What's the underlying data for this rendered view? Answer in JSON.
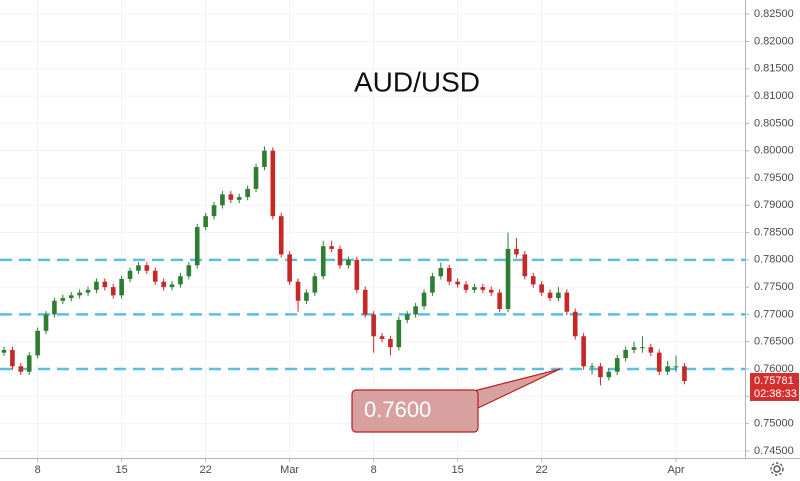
{
  "chart_data": {
    "type": "candlestick",
    "title": "AUD/USD",
    "open": [
      0.763,
      0.7635,
      0.7605,
      0.7595,
      0.7625,
      0.767,
      0.77,
      0.7725,
      0.773,
      0.7735,
      0.774,
      0.7745,
      0.776,
      0.775,
      0.7735,
      0.7765,
      0.778,
      0.779,
      0.778,
      0.776,
      0.775,
      0.7755,
      0.777,
      0.779,
      0.786,
      0.788,
      0.79,
      0.792,
      0.791,
      0.7915,
      0.793,
      0.797,
      0.8,
      0.788,
      0.781,
      0.776,
      0.7725,
      0.774,
      0.777,
      0.7825,
      0.782,
      0.779,
      0.78,
      0.7745,
      0.77,
      0.766,
      0.7655,
      0.764,
      0.769,
      0.77,
      0.7715,
      0.774,
      0.777,
      0.7785,
      0.776,
      0.7755,
      0.7745,
      0.775,
      0.7745,
      0.774,
      0.771,
      0.782,
      0.781,
      0.777,
      0.7755,
      0.774,
      0.773,
      0.774,
      0.7705,
      0.766,
      0.7605,
      0.7605,
      0.7585,
      0.7595,
      0.762,
      0.7635,
      0.764,
      0.764,
      0.763,
      0.7595,
      0.7605,
      0.7605
    ],
    "high": [
      0.7641,
      0.7641,
      0.7611,
      0.7631,
      0.7676,
      0.7706,
      0.7731,
      0.7736,
      0.7741,
      0.7746,
      0.7751,
      0.7766,
      0.7766,
      0.7756,
      0.7771,
      0.7786,
      0.7796,
      0.7796,
      0.7786,
      0.7766,
      0.7761,
      0.7776,
      0.7796,
      0.7866,
      0.7886,
      0.7906,
      0.7926,
      0.7926,
      0.7921,
      0.7936,
      0.7976,
      0.8008,
      0.8006,
      0.7886,
      0.7816,
      0.7766,
      0.7746,
      0.7776,
      0.7835,
      0.7835,
      0.7826,
      0.7806,
      0.7806,
      0.7751,
      0.7706,
      0.7666,
      0.7661,
      0.7696,
      0.7706,
      0.7721,
      0.7746,
      0.7776,
      0.7795,
      0.7791,
      0.7766,
      0.7761,
      0.7756,
      0.7756,
      0.7751,
      0.7746,
      0.785,
      0.784,
      0.7816,
      0.7776,
      0.7761,
      0.7746,
      0.775,
      0.7746,
      0.7711,
      0.7666,
      0.7611,
      0.7611,
      0.7601,
      0.7626,
      0.7641,
      0.765,
      0.766,
      0.7646,
      0.7636,
      0.7615,
      0.7625,
      0.7611
    ],
    "low": [
      0.7624,
      0.7599,
      0.7589,
      0.7589,
      0.7619,
      0.7664,
      0.7694,
      0.7719,
      0.7724,
      0.7729,
      0.7734,
      0.7739,
      0.7744,
      0.7729,
      0.7729,
      0.7759,
      0.7774,
      0.7774,
      0.7754,
      0.7744,
      0.7744,
      0.7749,
      0.7764,
      0.7784,
      0.7854,
      0.7874,
      0.7894,
      0.7904,
      0.7904,
      0.7909,
      0.7924,
      0.7964,
      0.7874,
      0.7804,
      0.7754,
      0.7705,
      0.7719,
      0.7734,
      0.7764,
      0.7814,
      0.7784,
      0.7784,
      0.7739,
      0.7694,
      0.763,
      0.7649,
      0.7625,
      0.7634,
      0.7684,
      0.7694,
      0.7709,
      0.7734,
      0.7764,
      0.7754,
      0.7749,
      0.7739,
      0.7739,
      0.7739,
      0.7734,
      0.7704,
      0.7704,
      0.7804,
      0.7764,
      0.7749,
      0.7734,
      0.7724,
      0.7724,
      0.7699,
      0.7654,
      0.7599,
      0.759,
      0.757,
      0.7579,
      0.7589,
      0.7614,
      0.7629,
      0.763,
      0.7624,
      0.7589,
      0.7589,
      0.7595,
      0.7572
    ],
    "close": [
      0.7635,
      0.7605,
      0.7595,
      0.7625,
      0.767,
      0.77,
      0.7725,
      0.773,
      0.7735,
      0.774,
      0.7745,
      0.776,
      0.775,
      0.7735,
      0.7765,
      0.778,
      0.779,
      0.778,
      0.776,
      0.775,
      0.7755,
      0.777,
      0.779,
      0.786,
      0.788,
      0.79,
      0.792,
      0.791,
      0.7915,
      0.793,
      0.797,
      0.8,
      0.788,
      0.781,
      0.776,
      0.7725,
      0.774,
      0.777,
      0.7825,
      0.782,
      0.779,
      0.78,
      0.7745,
      0.77,
      0.766,
      0.7655,
      0.764,
      0.769,
      0.77,
      0.7715,
      0.774,
      0.777,
      0.7785,
      0.776,
      0.7755,
      0.7745,
      0.775,
      0.7745,
      0.774,
      0.771,
      0.782,
      0.781,
      0.777,
      0.7755,
      0.774,
      0.773,
      0.774,
      0.7705,
      0.766,
      0.7605,
      0.7605,
      0.7585,
      0.7595,
      0.762,
      0.7635,
      0.764,
      0.764,
      0.763,
      0.7595,
      0.7605,
      0.7605,
      0.7578
    ],
    "up_color": "#2e7d32",
    "down_color": "#c62828",
    "xlim": [
      -0.48,
      88.21
    ],
    "xticks": [
      {
        "value": 4,
        "label": "8"
      },
      {
        "value": 14,
        "label": "15"
      },
      {
        "value": 24,
        "label": "22"
      },
      {
        "value": 34,
        "label": "Mar"
      },
      {
        "value": 44,
        "label": "8"
      },
      {
        "value": 54,
        "label": "15"
      },
      {
        "value": 64,
        "label": "22"
      },
      {
        "value": 80,
        "label": "Apr"
      }
    ],
    "ylim": [
      0.7437,
      0.8276
    ],
    "yticks": [
      {
        "value": 0.745,
        "label": "0.74500"
      },
      {
        "value": 0.75,
        "label": "0.75000"
      },
      {
        "value": 0.755,
        "label": "0.75500"
      },
      {
        "value": 0.76,
        "label": "0.76000"
      },
      {
        "value": 0.765,
        "label": "0.76500"
      },
      {
        "value": 0.77,
        "label": "0.77000"
      },
      {
        "value": 0.775,
        "label": "0.77500"
      },
      {
        "value": 0.78,
        "label": "0.78000"
      },
      {
        "value": 0.785,
        "label": "0.78500"
      },
      {
        "value": 0.79,
        "label": "0.79000"
      },
      {
        "value": 0.795,
        "label": "0.79500"
      },
      {
        "value": 0.8,
        "label": "0.80000"
      },
      {
        "value": 0.805,
        "label": "0.80500"
      },
      {
        "value": 0.81,
        "label": "0.81000"
      },
      {
        "value": 0.815,
        "label": "0.81500"
      },
      {
        "value": 0.82,
        "label": "0.82000"
      },
      {
        "value": 0.825,
        "label": "0.82500"
      }
    ],
    "grid": true,
    "levels": [
      0.78,
      0.77,
      0.76
    ],
    "level_color": "#5bc0de",
    "annotation": {
      "value": 0.76,
      "label": "0.7600"
    },
    "last_price": 0.75781,
    "countdown": "02:38:33"
  }
}
